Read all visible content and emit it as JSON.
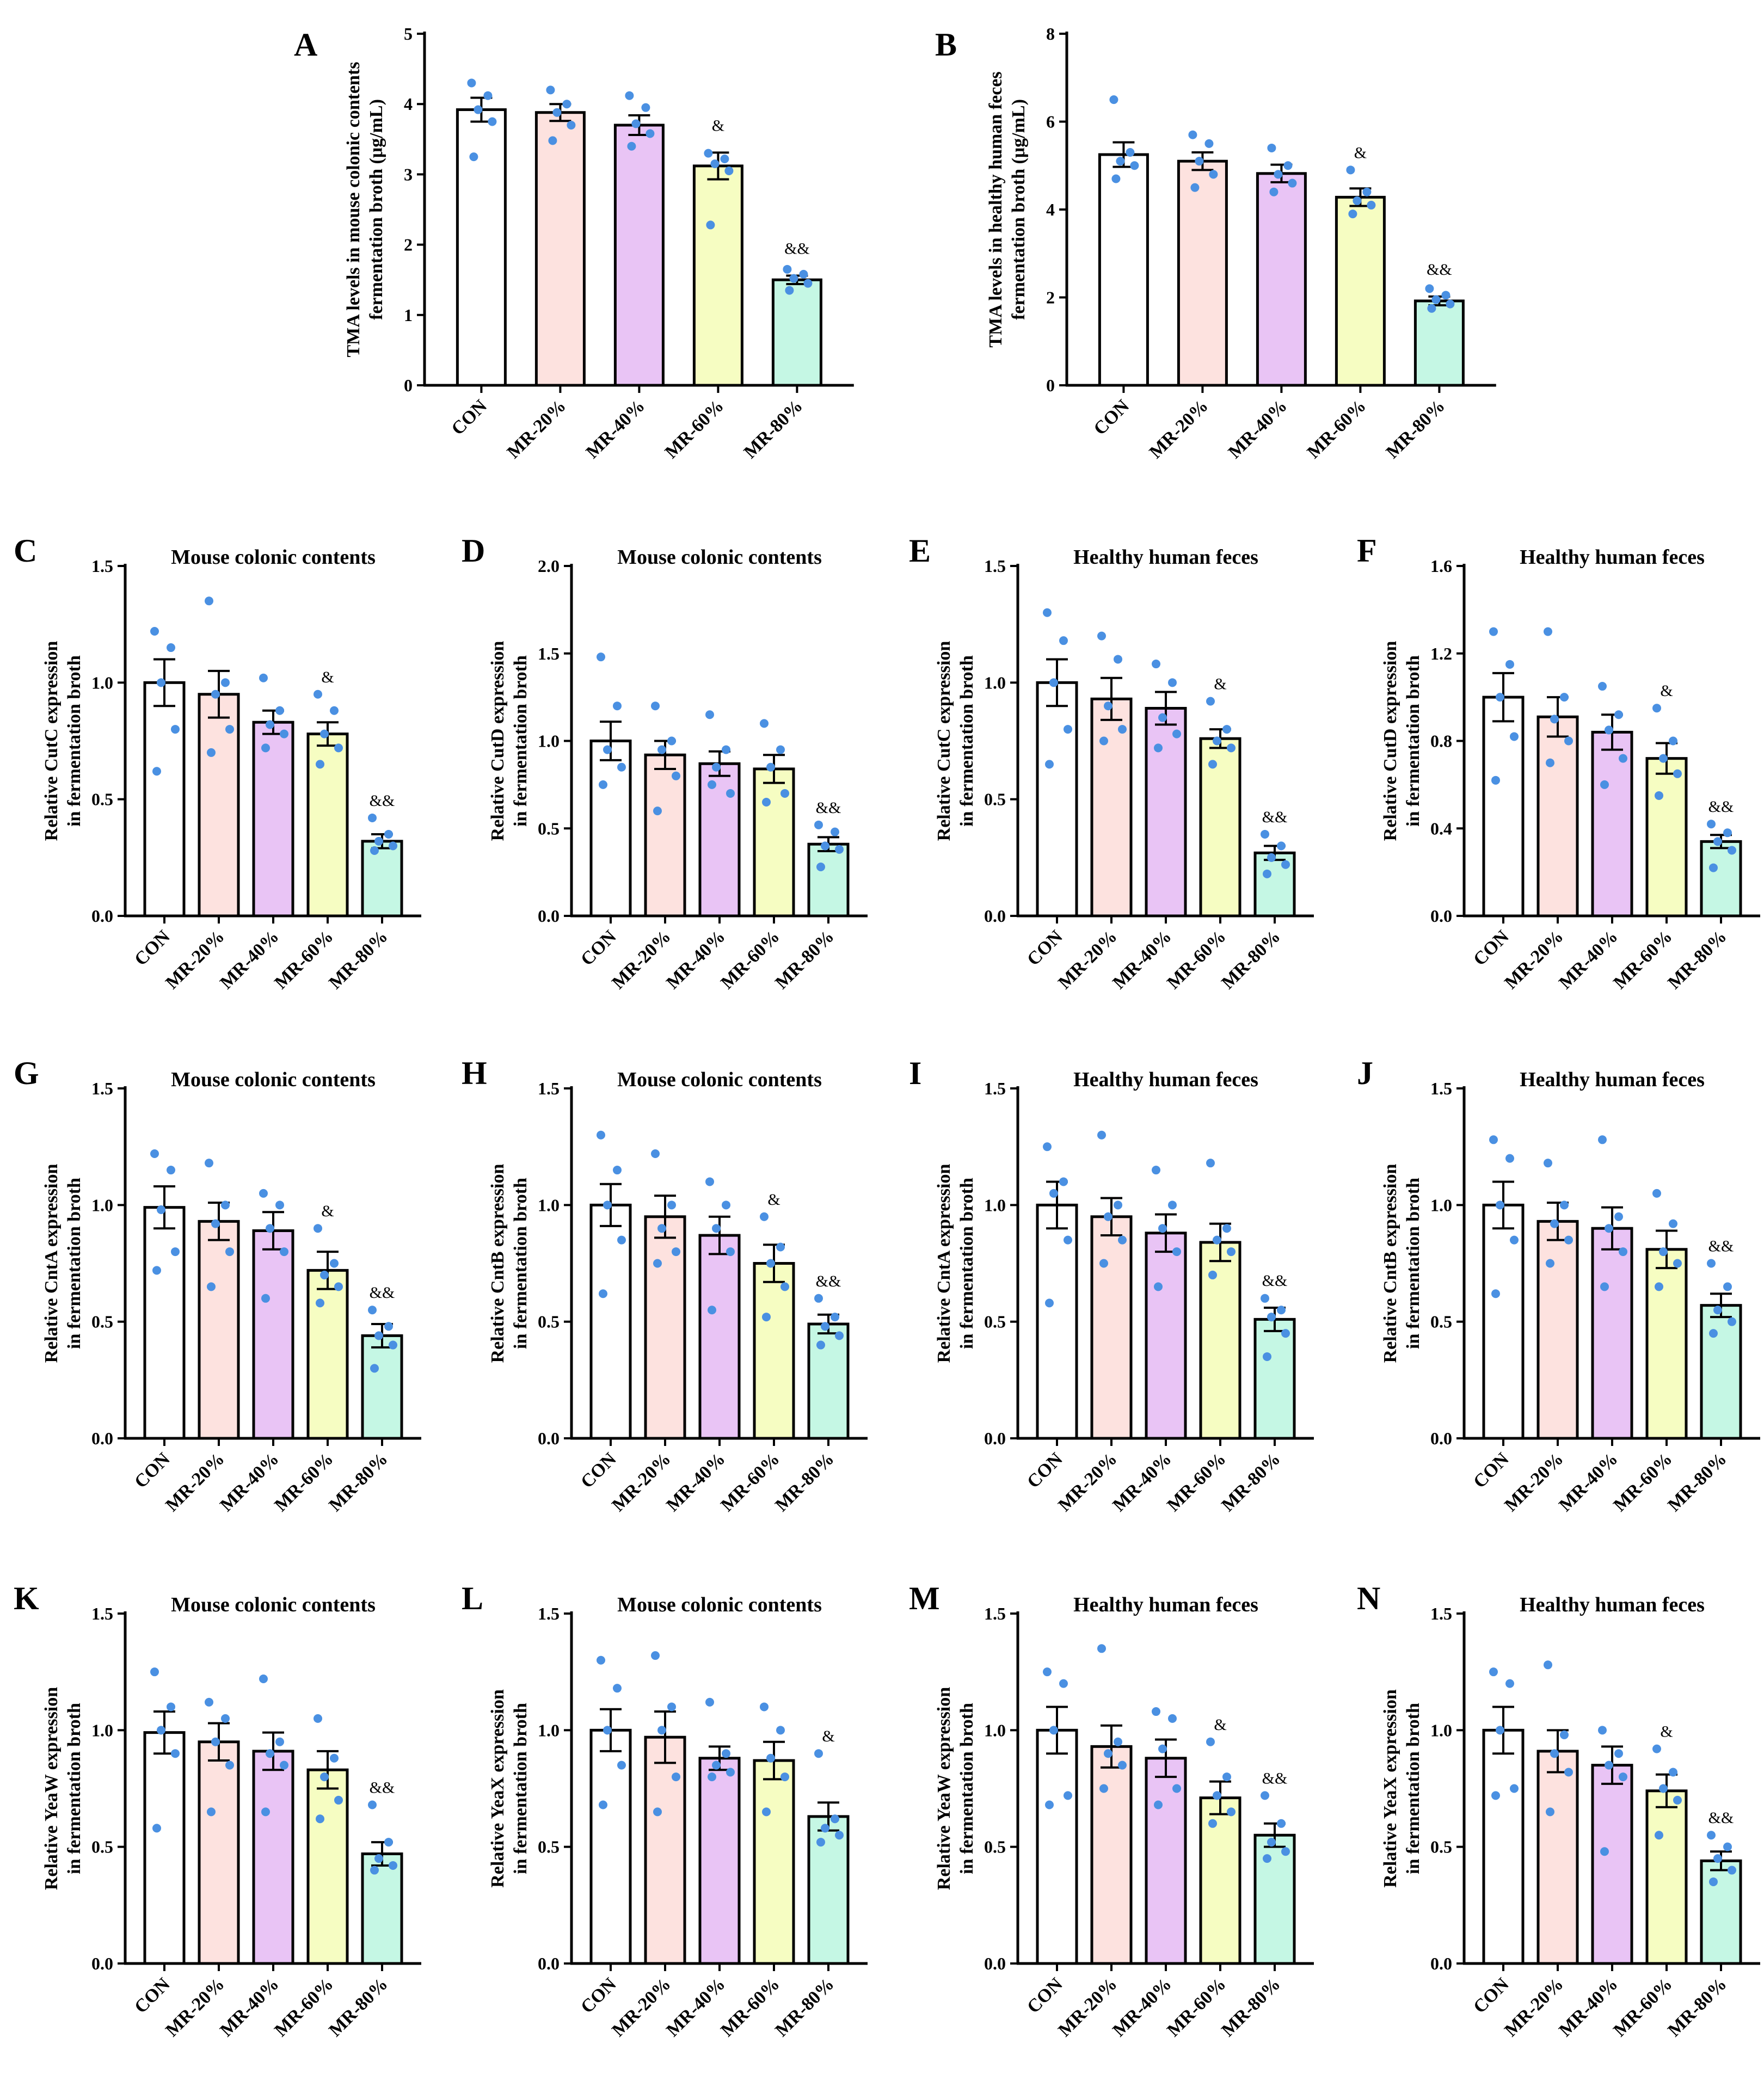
{
  "figure": {
    "background": "#ffffff"
  },
  "style": {
    "bar_colors": [
      "#ffffff",
      "#fde2df",
      "#e9c4f5",
      "#f6fdc2",
      "#c5f7e4"
    ],
    "dot_color": "#4a90e2",
    "line_color": "#000000"
  },
  "chart_data": [
    {
      "id": "A",
      "type": "bar",
      "title": "",
      "ylabel": [
        "TMA levels in mouse colonic contents",
        "fermentation broth (μg/mL)"
      ],
      "categories": [
        "CON",
        "MR-20%",
        "MR-40%",
        "MR-60%",
        "MR-80%"
      ],
      "values": [
        3.92,
        3.88,
        3.7,
        3.12,
        1.5
      ],
      "sem": [
        0.17,
        0.12,
        0.14,
        0.19,
        0.06
      ],
      "points": [
        [
          4.3,
          4.12,
          3.92,
          3.75,
          3.25
        ],
        [
          4.2,
          4.0,
          3.88,
          3.7,
          3.48
        ],
        [
          4.12,
          3.95,
          3.72,
          3.58,
          3.4
        ],
        [
          3.3,
          3.22,
          3.15,
          3.05,
          2.28
        ],
        [
          1.65,
          1.58,
          1.52,
          1.45,
          1.35
        ]
      ],
      "significance": [
        "",
        "",
        "",
        "&",
        "&&"
      ],
      "ylim": [
        0,
        5
      ],
      "yticks": [
        "0",
        "1",
        "2",
        "3",
        "4",
        "5"
      ]
    },
    {
      "id": "B",
      "type": "bar",
      "title": "",
      "ylabel": [
        "TMA levels in healthy human feces",
        "fermentation broth (μg/mL)"
      ],
      "categories": [
        "CON",
        "MR-20%",
        "MR-40%",
        "MR-60%",
        "MR-80%"
      ],
      "values": [
        5.25,
        5.1,
        4.82,
        4.28,
        1.92
      ],
      "sem": [
        0.28,
        0.2,
        0.2,
        0.2,
        0.1
      ],
      "points": [
        [
          6.5,
          5.3,
          5.1,
          5.0,
          4.7
        ],
        [
          5.7,
          5.5,
          5.1,
          4.8,
          4.5
        ],
        [
          5.4,
          5.0,
          4.8,
          4.6,
          4.4
        ],
        [
          4.9,
          4.4,
          4.2,
          4.1,
          3.9
        ],
        [
          2.2,
          2.05,
          1.95,
          1.85,
          1.75
        ]
      ],
      "significance": [
        "",
        "",
        "",
        "&",
        "&&"
      ],
      "ylim": [
        0,
        8
      ],
      "yticks": [
        "0",
        "2",
        "4",
        "6",
        "8"
      ]
    },
    {
      "id": "C",
      "type": "bar",
      "title": "Mouse colonic contents",
      "ylabel": [
        "Relative CutC expression",
        "in fermentation broth"
      ],
      "categories": [
        "CON",
        "MR-20%",
        "MR-40%",
        "MR-60%",
        "MR-80%"
      ],
      "values": [
        1.0,
        0.95,
        0.83,
        0.78,
        0.32
      ],
      "sem": [
        0.1,
        0.1,
        0.05,
        0.05,
        0.03
      ],
      "points": [
        [
          1.22,
          1.15,
          1.0,
          0.8,
          0.62
        ],
        [
          1.35,
          1.0,
          0.95,
          0.8,
          0.7
        ],
        [
          1.02,
          0.88,
          0.82,
          0.78,
          0.72
        ],
        [
          0.95,
          0.88,
          0.78,
          0.72,
          0.65
        ],
        [
          0.42,
          0.35,
          0.32,
          0.3,
          0.28
        ]
      ],
      "significance": [
        "",
        "",
        "",
        "&",
        "&&"
      ],
      "ylim": [
        0,
        1.5
      ],
      "yticks": [
        "0.0",
        "0.5",
        "1.0",
        "1.5"
      ]
    },
    {
      "id": "D",
      "type": "bar",
      "title": "Mouse colonic contents",
      "ylabel": [
        "Relative CutD expression",
        "in fermentation broth"
      ],
      "categories": [
        "CON",
        "MR-20%",
        "MR-40%",
        "MR-60%",
        "MR-80%"
      ],
      "values": [
        1.0,
        0.92,
        0.87,
        0.84,
        0.41
      ],
      "sem": [
        0.11,
        0.08,
        0.07,
        0.08,
        0.04
      ],
      "points": [
        [
          1.48,
          1.2,
          0.95,
          0.85,
          0.75
        ],
        [
          1.2,
          1.0,
          0.95,
          0.8,
          0.6
        ],
        [
          1.15,
          0.95,
          0.85,
          0.7,
          0.75
        ],
        [
          1.1,
          0.95,
          0.85,
          0.7,
          0.65
        ],
        [
          0.52,
          0.48,
          0.4,
          0.38,
          0.28
        ]
      ],
      "significance": [
        "",
        "",
        "",
        "",
        "&&"
      ],
      "ylim": [
        0,
        2.0
      ],
      "yticks": [
        "0.0",
        "0.5",
        "1.0",
        "1.5",
        "2.0"
      ]
    },
    {
      "id": "E",
      "type": "bar",
      "title": "Healthy human feces",
      "ylabel": [
        "Relative CutC expression",
        "in fermentation broth"
      ],
      "categories": [
        "CON",
        "MR-20%",
        "MR-40%",
        "MR-60%",
        "MR-80%"
      ],
      "values": [
        1.0,
        0.93,
        0.89,
        0.76,
        0.27
      ],
      "sem": [
        0.1,
        0.09,
        0.07,
        0.04,
        0.03
      ],
      "points": [
        [
          1.3,
          1.18,
          1.0,
          0.8,
          0.65
        ],
        [
          1.2,
          1.1,
          0.9,
          0.8,
          0.75
        ],
        [
          1.08,
          1.0,
          0.85,
          0.78,
          0.72
        ],
        [
          0.92,
          0.8,
          0.75,
          0.72,
          0.65
        ],
        [
          0.35,
          0.3,
          0.25,
          0.22,
          0.18
        ]
      ],
      "significance": [
        "",
        "",
        "",
        "&",
        "&&"
      ],
      "ylim": [
        0,
        1.5
      ],
      "yticks": [
        "0.0",
        "0.5",
        "1.0",
        "1.5"
      ]
    },
    {
      "id": "F",
      "type": "bar",
      "title": "Healthy human feces",
      "ylabel": [
        "Relative CutD expression",
        "in fermentation broth"
      ],
      "categories": [
        "CON",
        "MR-20%",
        "MR-40%",
        "MR-60%",
        "MR-80%"
      ],
      "values": [
        1.0,
        0.91,
        0.84,
        0.72,
        0.34
      ],
      "sem": [
        0.11,
        0.09,
        0.08,
        0.07,
        0.03
      ],
      "points": [
        [
          1.3,
          1.15,
          1.0,
          0.82,
          0.62
        ],
        [
          1.3,
          1.0,
          0.9,
          0.8,
          0.7
        ],
        [
          1.05,
          0.92,
          0.85,
          0.72,
          0.6
        ],
        [
          0.95,
          0.8,
          0.72,
          0.65,
          0.55
        ],
        [
          0.42,
          0.38,
          0.34,
          0.3,
          0.22
        ]
      ],
      "significance": [
        "",
        "",
        "",
        "&",
        "&&"
      ],
      "ylim": [
        0,
        1.6
      ],
      "yticks": [
        "0.0",
        "0.4",
        "0.8",
        "1.2",
        "1.6"
      ]
    },
    {
      "id": "G",
      "type": "bar",
      "title": "Mouse colonic contents",
      "ylabel": [
        "Relative CntA expression",
        "in fermentation broth"
      ],
      "categories": [
        "CON",
        "MR-20%",
        "MR-40%",
        "MR-60%",
        "MR-80%"
      ],
      "values": [
        0.99,
        0.93,
        0.89,
        0.72,
        0.44
      ],
      "sem": [
        0.09,
        0.08,
        0.08,
        0.08,
        0.05
      ],
      "points": [
        [
          1.22,
          1.15,
          0.98,
          0.8,
          0.72
        ],
        [
          1.18,
          1.0,
          0.92,
          0.8,
          0.65
        ],
        [
          1.05,
          1.0,
          0.9,
          0.8,
          0.6
        ],
        [
          0.9,
          0.75,
          0.7,
          0.65,
          0.58
        ],
        [
          0.55,
          0.48,
          0.44,
          0.4,
          0.3
        ]
      ],
      "significance": [
        "",
        "",
        "",
        "&",
        "&&"
      ],
      "ylim": [
        0,
        1.5
      ],
      "yticks": [
        "0.0",
        "0.5",
        "1.0",
        "1.5"
      ]
    },
    {
      "id": "H",
      "type": "bar",
      "title": "Mouse colonic contents",
      "ylabel": [
        "Relative CntB expression",
        "in fermentation broth"
      ],
      "categories": [
        "CON",
        "MR-20%",
        "MR-40%",
        "MR-60%",
        "MR-80%"
      ],
      "values": [
        1.0,
        0.95,
        0.87,
        0.75,
        0.49
      ],
      "sem": [
        0.09,
        0.09,
        0.08,
        0.08,
        0.04
      ],
      "points": [
        [
          1.3,
          1.15,
          1.0,
          0.85,
          0.62
        ],
        [
          1.22,
          1.0,
          0.9,
          0.8,
          0.75
        ],
        [
          1.1,
          1.0,
          0.9,
          0.8,
          0.55
        ],
        [
          0.95,
          0.82,
          0.75,
          0.65,
          0.52
        ],
        [
          0.6,
          0.52,
          0.48,
          0.44,
          0.4
        ]
      ],
      "significance": [
        "",
        "",
        "",
        "&",
        "&&"
      ],
      "ylim": [
        0,
        1.5
      ],
      "yticks": [
        "0.0",
        "0.5",
        "1.0",
        "1.5"
      ]
    },
    {
      "id": "I",
      "type": "bar",
      "title": "Healthy human feces",
      "ylabel": [
        "Relative CntA expression",
        "in fermentation broth"
      ],
      "categories": [
        "CON",
        "MR-20%",
        "MR-40%",
        "MR-60%",
        "MR-80%"
      ],
      "values": [
        1.0,
        0.95,
        0.88,
        0.84,
        0.51
      ],
      "sem": [
        0.1,
        0.08,
        0.08,
        0.08,
        0.05
      ],
      "points": [
        [
          1.25,
          1.1,
          1.05,
          0.85,
          0.58
        ],
        [
          1.3,
          1.0,
          0.95,
          0.85,
          0.75
        ],
        [
          1.15,
          1.0,
          0.9,
          0.8,
          0.65
        ],
        [
          1.18,
          0.9,
          0.85,
          0.8,
          0.7
        ],
        [
          0.6,
          0.55,
          0.52,
          0.45,
          0.35
        ]
      ],
      "significance": [
        "",
        "",
        "",
        "",
        "&&"
      ],
      "ylim": [
        0,
        1.5
      ],
      "yticks": [
        "0.0",
        "0.5",
        "1.0",
        "1.5"
      ]
    },
    {
      "id": "J",
      "type": "bar",
      "title": "Healthy human feces",
      "ylabel": [
        "Relative CntB expression",
        "in fermentation broth"
      ],
      "categories": [
        "CON",
        "MR-20%",
        "MR-40%",
        "MR-60%",
        "MR-80%"
      ],
      "values": [
        1.0,
        0.93,
        0.9,
        0.81,
        0.57
      ],
      "sem": [
        0.1,
        0.08,
        0.09,
        0.08,
        0.05
      ],
      "points": [
        [
          1.28,
          1.2,
          1.0,
          0.85,
          0.62
        ],
        [
          1.18,
          1.0,
          0.92,
          0.85,
          0.75
        ],
        [
          1.28,
          0.95,
          0.9,
          0.8,
          0.65
        ],
        [
          1.05,
          0.92,
          0.8,
          0.75,
          0.65
        ],
        [
          0.75,
          0.65,
          0.55,
          0.5,
          0.45
        ]
      ],
      "significance": [
        "",
        "",
        "",
        "",
        "&&"
      ],
      "ylim": [
        0,
        1.5
      ],
      "yticks": [
        "0.0",
        "0.5",
        "1.0",
        "1.5"
      ]
    },
    {
      "id": "K",
      "type": "bar",
      "title": "Mouse colonic contents",
      "ylabel": [
        "Relative YeaW expression",
        "in fermentation broth"
      ],
      "categories": [
        "CON",
        "MR-20%",
        "MR-40%",
        "MR-60%",
        "MR-80%"
      ],
      "values": [
        0.99,
        0.95,
        0.91,
        0.83,
        0.47
      ],
      "sem": [
        0.09,
        0.08,
        0.08,
        0.08,
        0.05
      ],
      "points": [
        [
          1.25,
          1.1,
          1.0,
          0.9,
          0.58
        ],
        [
          1.12,
          1.05,
          0.95,
          0.85,
          0.65
        ],
        [
          1.22,
          0.95,
          0.9,
          0.85,
          0.65
        ],
        [
          1.05,
          0.88,
          0.8,
          0.7,
          0.62
        ],
        [
          0.68,
          0.52,
          0.45,
          0.42,
          0.4
        ]
      ],
      "significance": [
        "",
        "",
        "",
        "",
        "&&"
      ],
      "ylim": [
        0,
        1.5
      ],
      "yticks": [
        "0.0",
        "0.5",
        "1.0",
        "1.5"
      ]
    },
    {
      "id": "L",
      "type": "bar",
      "title": "Mouse colonic contents",
      "ylabel": [
        "Relative YeaX expression",
        "in fermentation broth"
      ],
      "categories": [
        "CON",
        "MR-20%",
        "MR-40%",
        "MR-60%",
        "MR-80%"
      ],
      "values": [
        1.0,
        0.97,
        0.88,
        0.87,
        0.63
      ],
      "sem": [
        0.09,
        0.11,
        0.05,
        0.08,
        0.06
      ],
      "points": [
        [
          1.3,
          1.18,
          1.0,
          0.85,
          0.68
        ],
        [
          1.32,
          1.1,
          1.0,
          0.8,
          0.65
        ],
        [
          1.12,
          0.9,
          0.85,
          0.82,
          0.8
        ],
        [
          1.1,
          1.0,
          0.88,
          0.8,
          0.65
        ],
        [
          0.9,
          0.62,
          0.58,
          0.55,
          0.52
        ]
      ],
      "significance": [
        "",
        "",
        "",
        "",
        "&"
      ],
      "ylim": [
        0,
        1.5
      ],
      "yticks": [
        "0.0",
        "0.5",
        "1.0",
        "1.5"
      ]
    },
    {
      "id": "M",
      "type": "bar",
      "title": "Healthy human feces",
      "ylabel": [
        "Relative YeaW expression",
        "in fermentation broth"
      ],
      "categories": [
        "CON",
        "MR-20%",
        "MR-40%",
        "MR-60%",
        "MR-80%"
      ],
      "values": [
        1.0,
        0.93,
        0.88,
        0.71,
        0.55
      ],
      "sem": [
        0.1,
        0.09,
        0.08,
        0.07,
        0.05
      ],
      "points": [
        [
          1.25,
          1.2,
          1.0,
          0.72,
          0.68
        ],
        [
          1.35,
          0.95,
          0.9,
          0.85,
          0.75
        ],
        [
          1.08,
          1.05,
          0.92,
          0.75,
          0.68
        ],
        [
          0.95,
          0.8,
          0.72,
          0.65,
          0.6
        ],
        [
          0.72,
          0.6,
          0.52,
          0.48,
          0.45
        ]
      ],
      "significance": [
        "",
        "",
        "",
        "&",
        "&&"
      ],
      "ylim": [
        0,
        1.5
      ],
      "yticks": [
        "0.0",
        "0.5",
        "1.0",
        "1.5"
      ]
    },
    {
      "id": "N",
      "type": "bar",
      "title": "Healthy human feces",
      "ylabel": [
        "Relative YeaX expression",
        "in fermentation broth"
      ],
      "categories": [
        "CON",
        "MR-20%",
        "MR-40%",
        "MR-60%",
        "MR-80%"
      ],
      "values": [
        1.0,
        0.91,
        0.85,
        0.74,
        0.44
      ],
      "sem": [
        0.1,
        0.09,
        0.08,
        0.07,
        0.04
      ],
      "points": [
        [
          1.25,
          1.2,
          1.0,
          0.75,
          0.72
        ],
        [
          1.28,
          0.98,
          0.9,
          0.82,
          0.65
        ],
        [
          1.0,
          0.9,
          0.85,
          0.8,
          0.48
        ],
        [
          0.92,
          0.82,
          0.75,
          0.7,
          0.55
        ],
        [
          0.55,
          0.5,
          0.45,
          0.4,
          0.35
        ]
      ],
      "significance": [
        "",
        "",
        "",
        "&",
        "&&"
      ],
      "ylim": [
        0,
        1.5
      ],
      "yticks": [
        "0.0",
        "0.5",
        "1.0",
        "1.5"
      ]
    }
  ]
}
